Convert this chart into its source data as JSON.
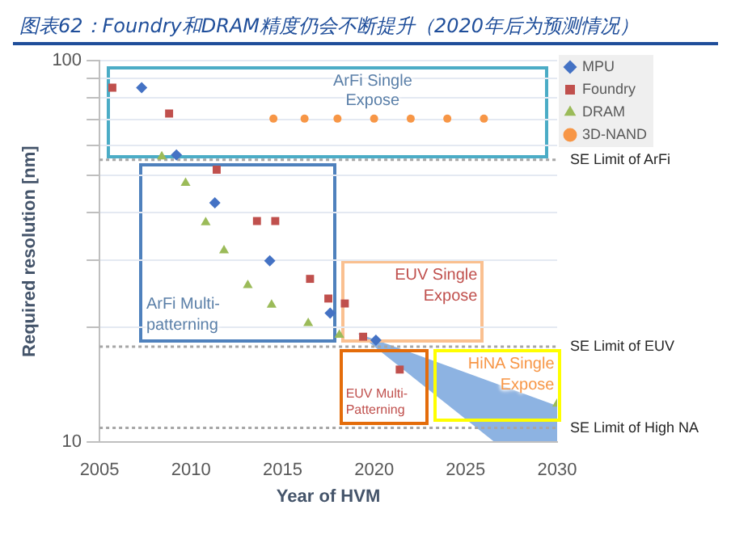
{
  "chart_data": {
    "type": "scatter",
    "title": "图表62：Foundry和DRAM精度仍会不断提升（2020年后为预测情况）",
    "xlabel": "Year of HVM",
    "ylabel": "Required resolution [nm]",
    "log": "y",
    "grid": "y",
    "legend": "top right",
    "xlim": [
      2005,
      2030
    ],
    "xticks": [
      2005,
      2010,
      2015,
      2020,
      2025,
      2030
    ],
    "ylim": [
      10,
      100
    ],
    "yticks": [
      10,
      {
        "value": 20,
        "label": null
      },
      {
        "value": 30,
        "label": null
      },
      {
        "value": 40,
        "label": null
      },
      {
        "value": 50,
        "label": null
      },
      {
        "value": 60,
        "label": null
      },
      {
        "value": 70,
        "label": null
      },
      {
        "value": 80,
        "label": null
      },
      {
        "value": 90,
        "label": null
      },
      100
    ],
    "series": [
      {
        "name": "MPU",
        "color": "#4472c4",
        "marker": "diamond",
        "x": [
          2007.3,
          2009.2,
          2011.3,
          2014.3,
          2017.6,
          2020.1
        ],
        "values": [
          85,
          56.6,
          42.4,
          29.9,
          21.8,
          18.5
        ]
      },
      {
        "name": "Foundry",
        "color": "#c0504d",
        "marker": "square",
        "x": [
          2005.7,
          2008.8,
          2011.4,
          2013.6,
          2014.6,
          2016.5,
          2017.5,
          2018.4,
          2019.4,
          2021.4
        ],
        "values": [
          85,
          72.7,
          51.8,
          38,
          38,
          26.8,
          23.8,
          23.1,
          18.9,
          15.5
        ]
      },
      {
        "name": "DRAM",
        "color": "#9bbb59",
        "marker": "triangle",
        "x": [
          2008.4,
          2009.7,
          2010.8,
          2011.8,
          2013.1,
          2014.4,
          2016.4,
          2018.1,
          2030
        ],
        "values": [
          56.1,
          47.8,
          37.7,
          31.8,
          25.8,
          22.9,
          20.5,
          19.1,
          12.6
        ]
      },
      {
        "name": "3D-NAND",
        "color": "#f79646",
        "marker": "circle",
        "x": [
          2014.5,
          2016.2,
          2018,
          2020,
          2022,
          2024,
          2026
        ],
        "values": [
          70.5,
          70.5,
          70.5,
          70.5,
          70.5,
          70.5,
          70.5
        ]
      }
    ],
    "ref_lines": [
      {
        "axis": "y",
        "value": 55,
        "label": "SE Limit of ArFi",
        "color": "#a6a6a6",
        "line_style": "dotted"
      },
      {
        "axis": "y",
        "value": 17.8,
        "label": "SE Limit of EUV",
        "color": "#a6a6a6",
        "line_style": "dotted"
      },
      {
        "axis": "y",
        "value": 10.9,
        "label": "SE Limit of High NA",
        "color": "#a6a6a6",
        "line_style": "dotted"
      }
    ],
    "annotations": [
      "ArFi Single Expose",
      "ArFi Multi-patterning",
      "EUV Single Expose",
      "EUV Multi-Patterning",
      "HiNA Single Expose"
    ]
  }
}
